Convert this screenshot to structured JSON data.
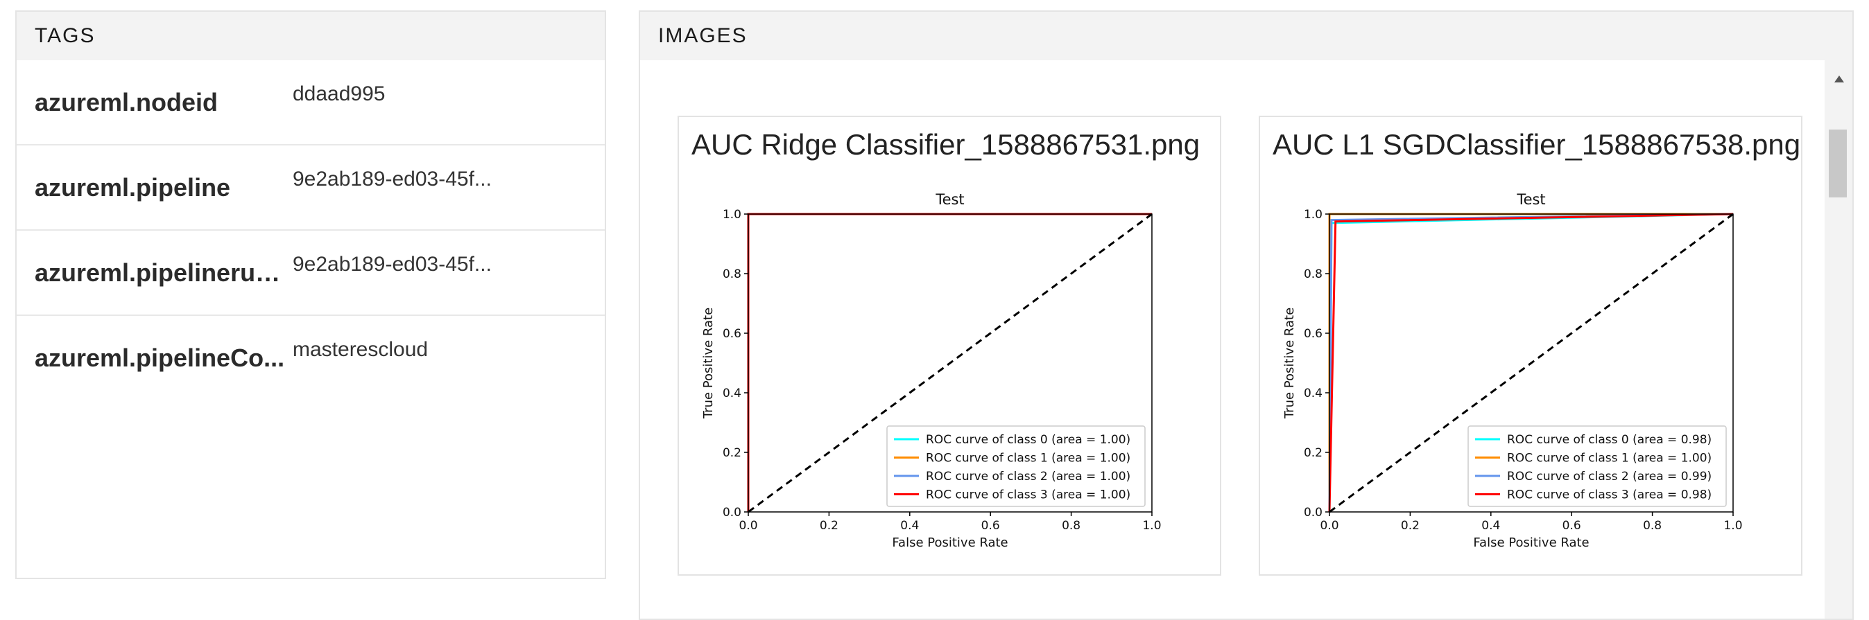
{
  "tags": {
    "header": "TAGS",
    "rows": [
      {
        "key": "azureml.nodeid",
        "value": "ddaad995"
      },
      {
        "key": "azureml.pipeline",
        "value": "9e2ab189-ed03-45f..."
      },
      {
        "key": "azureml.pipelinerunid",
        "value": "9e2ab189-ed03-45f..."
      },
      {
        "key": "azureml.pipelineCo...",
        "value": "masterescloud"
      }
    ]
  },
  "images": {
    "header": "IMAGES",
    "cards": [
      {
        "title": "AUC Ridge Classifier_1588867531.png"
      },
      {
        "title": "AUC L1 SGDClassifier_1588867538.png"
      }
    ]
  },
  "chart_data": [
    {
      "type": "line",
      "title": "Test",
      "xlabel": "False Positive Rate",
      "ylabel": "True Positive Rate",
      "xlim": [
        0,
        1
      ],
      "ylim": [
        0,
        1
      ],
      "xticks": [
        "0.0",
        "0.2",
        "0.4",
        "0.6",
        "0.8",
        "1.0"
      ],
      "yticks": [
        "0.0",
        "0.2",
        "0.4",
        "0.6",
        "0.8",
        "1.0"
      ],
      "legend_position": "lower-right",
      "series": [
        {
          "name": "ROC curve of class 0 (area = 1.00)",
          "color": "#00ffff",
          "x": [
            0,
            0,
            1
          ],
          "y": [
            0,
            1,
            1
          ]
        },
        {
          "name": "ROC curve of class 1 (area = 1.00)",
          "color": "#ff8c00",
          "x": [
            0,
            0,
            1
          ],
          "y": [
            0,
            1,
            1
          ]
        },
        {
          "name": "ROC curve of class 2 (area = 1.00)",
          "color": "#6495ed",
          "x": [
            0,
            0,
            1
          ],
          "y": [
            0,
            1,
            1
          ]
        },
        {
          "name": "ROC curve of class 3 (area = 1.00)",
          "color": "#ff0000",
          "x": [
            0,
            0,
            1
          ],
          "y": [
            0,
            1,
            1
          ]
        }
      ],
      "diagonal": {
        "x": [
          0,
          1
        ],
        "y": [
          0,
          1
        ],
        "color": "#000000",
        "style": "dashed"
      }
    },
    {
      "type": "line",
      "title": "Test",
      "xlabel": "False Positive Rate",
      "ylabel": "True Positive Rate",
      "xlim": [
        0,
        1
      ],
      "ylim": [
        0,
        1
      ],
      "xticks": [
        "0.0",
        "0.2",
        "0.4",
        "0.6",
        "0.8",
        "1.0"
      ],
      "yticks": [
        "0.0",
        "0.2",
        "0.4",
        "0.6",
        "0.8",
        "1.0"
      ],
      "legend_position": "lower-right",
      "series": [
        {
          "name": "ROC curve of class 0 (area = 0.98)",
          "color": "#00ffff",
          "x": [
            0,
            0.005,
            1
          ],
          "y": [
            0,
            0.97,
            1
          ]
        },
        {
          "name": "ROC curve of class 1 (area = 1.00)",
          "color": "#ff8c00",
          "x": [
            0,
            0,
            1
          ],
          "y": [
            0,
            1,
            1
          ]
        },
        {
          "name": "ROC curve of class 2 (area = 0.99)",
          "color": "#6495ed",
          "x": [
            0,
            0.005,
            1
          ],
          "y": [
            0,
            0.98,
            1
          ]
        },
        {
          "name": "ROC curve of class 3 (area = 0.98)",
          "color": "#ff0000",
          "x": [
            0,
            0.015,
            1
          ],
          "y": [
            0,
            0.975,
            1
          ]
        }
      ],
      "diagonal": {
        "x": [
          0,
          1
        ],
        "y": [
          0,
          1
        ],
        "color": "#000000",
        "style": "dashed"
      }
    }
  ]
}
